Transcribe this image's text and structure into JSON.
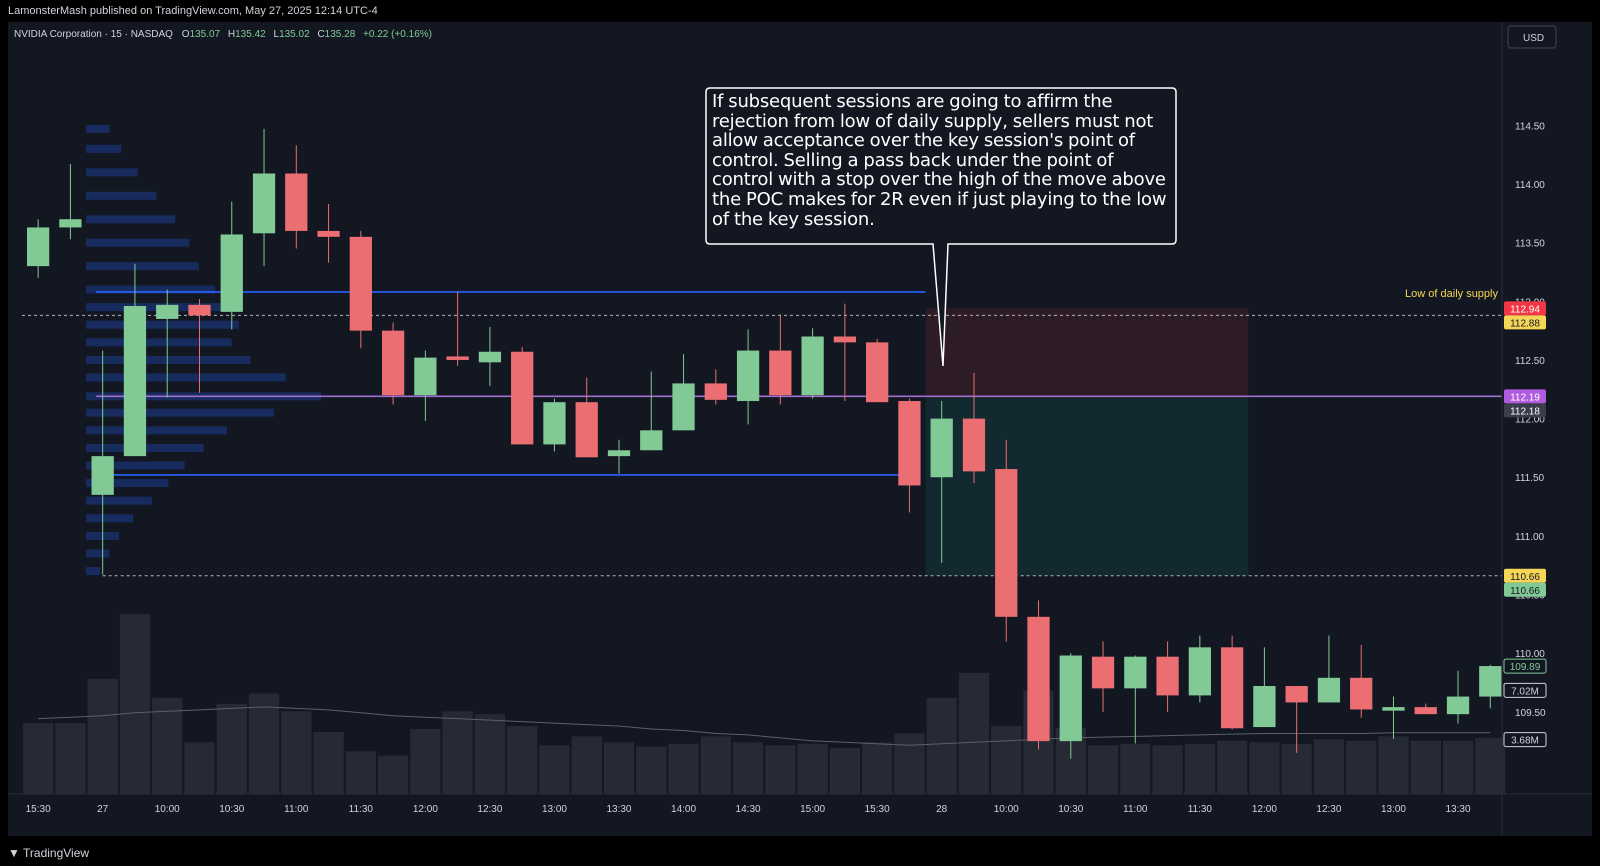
{
  "header": {
    "published": "LamonsterMash published on TradingView.com, May 27, 2025 12:14 UTC-4"
  },
  "footer": {
    "brand": "TradingView"
  },
  "symbol_info": {
    "title": "NVIDIA Corporation · 15 · NASDAQ",
    "o_label": "O",
    "o": "135.07",
    "h_label": "H",
    "h": "135.42",
    "l_label": "L",
    "l": "135.02",
    "c_label": "C",
    "c": "135.28",
    "change": "+0.22 (+0.16%)"
  },
  "currency": "USD",
  "colors": {
    "up": "#81c995",
    "down": "#eb6e72",
    "volume": "#262a35",
    "background": "#131722",
    "grid_text": "#d1d4dc",
    "blue_line": "#2962ff",
    "poc_line": "#a16fd0",
    "label_yellow": "#f5d657",
    "label_red": "#f23645",
    "label_green": "#81c995",
    "label_purple": "#b05ce0"
  },
  "annotations": {
    "callout": "If subsequent sessions are going to affirm the rejection from low of daily supply, sellers must not allow acceptance over the key session's point of control. Selling a pass back under the point of control with a stop over the high of the move above the POC makes for 2R even if just playing to the low of the key session.",
    "supply_label": "Low of daily supply"
  },
  "price_labels": [
    {
      "text": "112.94",
      "value": 112.94,
      "color": "#f23645",
      "text_color": "#ffffff"
    },
    {
      "text": "112.88",
      "value": 112.88,
      "color": "#f5d657",
      "text_color": "#131722"
    },
    {
      "text": "112.19",
      "value": 112.19,
      "color": "#b05ce0",
      "text_color": "#ffffff"
    },
    {
      "text": "112.18",
      "value": 112.18,
      "color": "#3a3e4a",
      "text_color": "#ffffff"
    },
    {
      "text": "110.66",
      "value": 110.66,
      "color": "#f5d657",
      "text_color": "#131722"
    },
    {
      "text": "110.66",
      "value": 110.66,
      "color": "#81c995",
      "text_color": "#131722"
    },
    {
      "text": "109.89",
      "value": 109.89,
      "color": "#131722",
      "text_color": "#81c995",
      "outline": "#81c995"
    }
  ],
  "volume_labels": [
    {
      "text": "7.02M",
      "value": 7.02
    },
    {
      "text": "3.68M",
      "value": 3.68
    }
  ],
  "chart_data": {
    "type": "candlestick",
    "yaxis": {
      "ticks": [
        114.5,
        114.0,
        113.5,
        113.0,
        112.5,
        112.0,
        111.5,
        111.0,
        110.5,
        110.0,
        109.5
      ],
      "tick_labels": [
        "114.50",
        "114.00",
        "113.50",
        "113.00",
        "112.50",
        "112.00",
        "111.50",
        "111.00",
        "110.50",
        "110.00",
        "109.50"
      ],
      "range": [
        109.2,
        114.87
      ]
    },
    "xaxis": {
      "labels": [
        {
          "i": 0.5,
          "text": "15:30"
        },
        {
          "i": 2.5,
          "text": "27"
        },
        {
          "i": 4.5,
          "text": "10:00"
        },
        {
          "i": 6.5,
          "text": "10:30"
        },
        {
          "i": 8.5,
          "text": "11:00"
        },
        {
          "i": 10.5,
          "text": "11:30"
        },
        {
          "i": 12.5,
          "text": "12:00"
        },
        {
          "i": 14.5,
          "text": "12:30"
        },
        {
          "i": 16.5,
          "text": "13:00"
        },
        {
          "i": 18.5,
          "text": "13:30"
        },
        {
          "i": 20.5,
          "text": "14:00"
        },
        {
          "i": 22.5,
          "text": "14:30"
        },
        {
          "i": 24.5,
          "text": "15:00"
        },
        {
          "i": 26.5,
          "text": "15:30"
        },
        {
          "i": 28.5,
          "text": "28"
        },
        {
          "i": 30.5,
          "text": "10:00"
        },
        {
          "i": 32.5,
          "text": "10:30"
        },
        {
          "i": 34.5,
          "text": "11:00"
        },
        {
          "i": 36.5,
          "text": "11:30"
        },
        {
          "i": 38.5,
          "text": "12:00"
        },
        {
          "i": 40.5,
          "text": "12:30"
        },
        {
          "i": 42.5,
          "text": "13:00"
        },
        {
          "i": 44.5,
          "text": "13:30"
        }
      ]
    },
    "candles": [
      {
        "o": 113.3,
        "h": 113.7,
        "l": 113.2,
        "c": 113.63
      },
      {
        "o": 113.63,
        "h": 114.17,
        "l": 113.53,
        "c": 113.7
      },
      {
        "o": 111.35,
        "h": 112.58,
        "l": 110.67,
        "c": 111.68
      },
      {
        "o": 111.68,
        "h": 113.32,
        "l": 111.68,
        "c": 112.96
      },
      {
        "o": 112.85,
        "h": 113.1,
        "l": 112.18,
        "c": 112.97
      },
      {
        "o": 112.97,
        "h": 113.02,
        "l": 112.22,
        "c": 112.88
      },
      {
        "o": 112.91,
        "h": 113.85,
        "l": 112.76,
        "c": 113.57
      },
      {
        "o": 113.58,
        "h": 114.47,
        "l": 113.3,
        "c": 114.09
      },
      {
        "o": 114.09,
        "h": 114.33,
        "l": 113.45,
        "c": 113.6
      },
      {
        "o": 113.6,
        "h": 113.83,
        "l": 113.33,
        "c": 113.55
      },
      {
        "o": 113.55,
        "h": 113.6,
        "l": 112.6,
        "c": 112.75
      },
      {
        "o": 112.75,
        "h": 112.82,
        "l": 112.12,
        "c": 112.2
      },
      {
        "o": 112.2,
        "h": 112.58,
        "l": 111.98,
        "c": 112.52
      },
      {
        "o": 112.53,
        "h": 113.08,
        "l": 112.45,
        "c": 112.5
      },
      {
        "o": 112.48,
        "h": 112.78,
        "l": 112.28,
        "c": 112.57
      },
      {
        "o": 112.57,
        "h": 112.61,
        "l": 111.8,
        "c": 111.78
      },
      {
        "o": 111.78,
        "h": 112.17,
        "l": 111.72,
        "c": 112.14
      },
      {
        "o": 112.14,
        "h": 112.35,
        "l": 111.68,
        "c": 111.67
      },
      {
        "o": 111.68,
        "h": 111.82,
        "l": 111.53,
        "c": 111.73
      },
      {
        "o": 111.73,
        "h": 112.4,
        "l": 111.73,
        "c": 111.9
      },
      {
        "o": 111.9,
        "h": 112.55,
        "l": 111.9,
        "c": 112.3
      },
      {
        "o": 112.3,
        "h": 112.42,
        "l": 112.12,
        "c": 112.16
      },
      {
        "o": 112.15,
        "h": 112.76,
        "l": 111.95,
        "c": 112.58
      },
      {
        "o": 112.58,
        "h": 112.89,
        "l": 112.12,
        "c": 112.2
      },
      {
        "o": 112.2,
        "h": 112.77,
        "l": 112.17,
        "c": 112.7
      },
      {
        "o": 112.7,
        "h": 112.98,
        "l": 112.15,
        "c": 112.65
      },
      {
        "o": 112.65,
        "h": 112.68,
        "l": 112.14,
        "c": 112.14
      },
      {
        "o": 112.15,
        "h": 112.17,
        "l": 111.2,
        "c": 111.43
      },
      {
        "o": 111.5,
        "h": 112.15,
        "l": 110.77,
        "c": 112.0
      },
      {
        "o": 112.0,
        "h": 112.39,
        "l": 111.45,
        "c": 111.55
      },
      {
        "o": 111.57,
        "h": 111.82,
        "l": 110.1,
        "c": 110.31
      },
      {
        "o": 110.31,
        "h": 110.45,
        "l": 109.18,
        "c": 109.25
      },
      {
        "o": 109.25,
        "h": 110.0,
        "l": 109.1,
        "c": 109.98
      },
      {
        "o": 109.97,
        "h": 110.1,
        "l": 109.5,
        "c": 109.7
      },
      {
        "o": 109.7,
        "h": 109.98,
        "l": 109.23,
        "c": 109.97
      },
      {
        "o": 109.97,
        "h": 110.1,
        "l": 109.5,
        "c": 109.64
      },
      {
        "o": 109.64,
        "h": 110.15,
        "l": 109.58,
        "c": 110.05
      },
      {
        "o": 110.05,
        "h": 110.15,
        "l": 109.35,
        "c": 109.36
      },
      {
        "o": 109.37,
        "h": 110.05,
        "l": 109.37,
        "c": 109.72
      },
      {
        "o": 109.72,
        "h": 109.72,
        "l": 109.15,
        "c": 109.58
      },
      {
        "o": 109.58,
        "h": 110.15,
        "l": 109.58,
        "c": 109.79
      },
      {
        "o": 109.79,
        "h": 110.07,
        "l": 109.45,
        "c": 109.52
      },
      {
        "o": 109.51,
        "h": 109.63,
        "l": 109.27,
        "c": 109.54
      },
      {
        "o": 109.54,
        "h": 109.57,
        "l": 109.48,
        "c": 109.48
      },
      {
        "o": 109.48,
        "h": 109.85,
        "l": 109.4,
        "c": 109.63
      },
      {
        "o": 109.63,
        "h": 109.9,
        "l": 109.53,
        "c": 109.89
      }
    ],
    "volume": [
      4.8,
      4.8,
      7.8,
      12.2,
      6.5,
      3.5,
      6.1,
      6.8,
      5.6,
      4.2,
      2.9,
      2.6,
      4.4,
      5.6,
      5.4,
      4.6,
      3.3,
      3.9,
      3.5,
      3.2,
      3.4,
      3.9,
      3.5,
      3.3,
      3.4,
      3.1,
      3.5,
      4.1,
      6.5,
      8.2,
      4.6,
      7.0,
      4.5,
      3.3,
      3.4,
      3.3,
      3.4,
      3.6,
      3.5,
      3.4,
      3.7,
      3.6,
      3.9,
      3.6,
      3.6,
      3.8
    ],
    "volume_ma": [
      5.1,
      5.2,
      5.3,
      5.5,
      5.6,
      5.7,
      5.8,
      5.9,
      5.8,
      5.7,
      5.5,
      5.3,
      5.2,
      5.1,
      5.0,
      4.9,
      4.8,
      4.7,
      4.6,
      4.4,
      4.3,
      4.1,
      4.0,
      3.8,
      3.6,
      3.5,
      3.4,
      3.3,
      3.4,
      3.5,
      3.6,
      3.7,
      3.8,
      3.85,
      3.9,
      3.95,
      4.0,
      4.05,
      4.1,
      4.1,
      4.1,
      4.1,
      4.15,
      4.15,
      4.15,
      4.15
    ],
    "volume_range": [
      0,
      13
    ],
    "horizontal_lines": [
      {
        "value": 113.08,
        "color": "#2962ff",
        "from_i": 2.3,
        "to_i": 28.0,
        "style": "solid"
      },
      {
        "value": 112.19,
        "color": "#a16fd0",
        "from_i": 2.3,
        "to_i": 46.0,
        "style": "solid"
      },
      {
        "value": 111.52,
        "color": "#2962ff",
        "from_i": 2.3,
        "to_i": 27.5,
        "style": "solid"
      },
      {
        "value": 112.88,
        "color": "#b2b5be",
        "from_i": 0.0,
        "to_i": 46.0,
        "style": "dashed"
      },
      {
        "value": 110.66,
        "color": "#b2b5be",
        "from_i": 2.5,
        "to_i": 46.0,
        "style": "dashed"
      }
    ],
    "volume_profile_levels": [
      [
        114.47,
        0.1
      ],
      [
        114.3,
        0.15
      ],
      [
        114.1,
        0.22
      ],
      [
        113.9,
        0.3
      ],
      [
        113.7,
        0.38
      ],
      [
        113.5,
        0.44
      ],
      [
        113.3,
        0.48
      ],
      [
        113.1,
        0.55
      ],
      [
        112.95,
        0.6
      ],
      [
        112.8,
        0.65
      ],
      [
        112.65,
        0.62
      ],
      [
        112.5,
        0.7
      ],
      [
        112.35,
        0.85
      ],
      [
        112.19,
        1.0
      ],
      [
        112.05,
        0.8
      ],
      [
        111.9,
        0.6
      ],
      [
        111.75,
        0.5
      ],
      [
        111.6,
        0.42
      ],
      [
        111.45,
        0.35
      ],
      [
        111.3,
        0.28
      ],
      [
        111.15,
        0.2
      ],
      [
        111.0,
        0.14
      ],
      [
        110.85,
        0.1
      ],
      [
        110.7,
        0.06
      ]
    ],
    "position_tool": {
      "from_i": 28.0,
      "to_i": 38.0,
      "stop": 112.94,
      "entry": 112.18,
      "target": 110.66
    }
  }
}
